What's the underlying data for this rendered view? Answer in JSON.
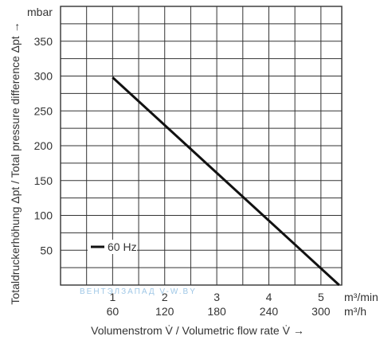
{
  "chart_data": {
    "type": "line",
    "ylabel_unit": "mbar",
    "ylabel": "Totaldruckerhöhung Δpt / Total pressure difference Δpt →",
    "xlabel": "Volumenstrom V̇ / Volumetric flow rate V̇ →",
    "x_unit_min": "m³/min",
    "x_unit_h": "m³/h",
    "x_ticks_min": [
      "1",
      "2",
      "3",
      "4",
      "5"
    ],
    "x_ticks_h": [
      "60",
      "120",
      "180",
      "240",
      "300"
    ],
    "y_ticks": [
      "50",
      "100",
      "150",
      "200",
      "250",
      "300",
      "350"
    ],
    "xlim": [
      0,
      5.4
    ],
    "ylim": [
      0,
      400
    ],
    "grid": true,
    "legend_position": "bottom-left",
    "series": [
      {
        "name": "60 Hz",
        "x": [
          1.0,
          5.35
        ],
        "y": [
          298,
          0
        ]
      }
    ]
  },
  "watermark": "ВЕНТЭЛЗАПАД V-W.BY"
}
